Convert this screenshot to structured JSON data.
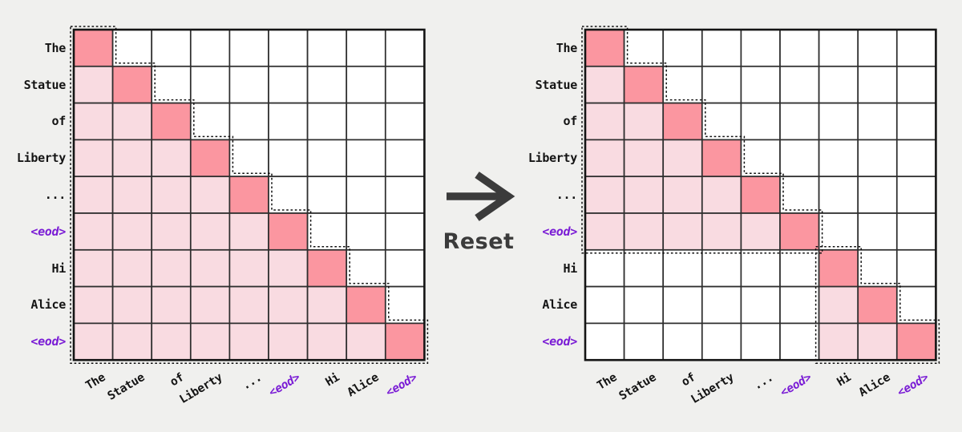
{
  "colors": {
    "background": "#f0f0ee",
    "masked": "#ffffff",
    "context": "#f9dbe1",
    "diagonal": "#fb96a0",
    "grid_line": "#2e2e2e",
    "outer_border": "#141414",
    "dotted_outline": "#101010",
    "token_label": "#141414",
    "eod_label": "#7a1cd5",
    "arrow": "#3b3b3b"
  },
  "eod_token": "<eod>",
  "transition": {
    "label": "Reset",
    "icon": "right-arrow"
  },
  "chart_data": [
    {
      "type": "heatmap",
      "name": "causal-attention-mask-before-reset",
      "row_tokens": [
        "The",
        "Statue",
        "of",
        "Liberty",
        "...",
        "<eod>",
        "Hi",
        "Alice",
        "<eod>"
      ],
      "col_tokens": [
        "The",
        "Statue",
        "of",
        "Liberty",
        "...",
        "<eod>",
        "Hi",
        "Alice",
        "<eod>"
      ],
      "value_legend": {
        "0": "masked (white)",
        "1": "attended context (light pink)",
        "2": "self / diagonal (dark pink)"
      },
      "mask": [
        [
          2,
          0,
          0,
          0,
          0,
          0,
          0,
          0,
          0
        ],
        [
          1,
          2,
          0,
          0,
          0,
          0,
          0,
          0,
          0
        ],
        [
          1,
          1,
          2,
          0,
          0,
          0,
          0,
          0,
          0
        ],
        [
          1,
          1,
          1,
          2,
          0,
          0,
          0,
          0,
          0
        ],
        [
          1,
          1,
          1,
          1,
          2,
          0,
          0,
          0,
          0
        ],
        [
          1,
          1,
          1,
          1,
          1,
          2,
          0,
          0,
          0
        ],
        [
          1,
          1,
          1,
          1,
          1,
          1,
          2,
          0,
          0
        ],
        [
          1,
          1,
          1,
          1,
          1,
          1,
          1,
          2,
          0
        ],
        [
          1,
          1,
          1,
          1,
          1,
          1,
          1,
          1,
          2
        ]
      ],
      "outline_blocks": [
        {
          "row_start": 1,
          "row_end": 9,
          "col_start": 1
        }
      ]
    },
    {
      "type": "heatmap",
      "name": "attention-mask-after-reset",
      "row_tokens": [
        "The",
        "Statue",
        "of",
        "Liberty",
        "...",
        "<eod>",
        "Hi",
        "Alice",
        "<eod>"
      ],
      "col_tokens": [
        "The",
        "Statue",
        "of",
        "Liberty",
        "...",
        "<eod>",
        "Hi",
        "Alice",
        "<eod>"
      ],
      "value_legend": {
        "0": "masked (white)",
        "1": "attended context (light pink)",
        "2": "self / diagonal (dark pink)"
      },
      "mask": [
        [
          2,
          0,
          0,
          0,
          0,
          0,
          0,
          0,
          0
        ],
        [
          1,
          2,
          0,
          0,
          0,
          0,
          0,
          0,
          0
        ],
        [
          1,
          1,
          2,
          0,
          0,
          0,
          0,
          0,
          0
        ],
        [
          1,
          1,
          1,
          2,
          0,
          0,
          0,
          0,
          0
        ],
        [
          1,
          1,
          1,
          1,
          2,
          0,
          0,
          0,
          0
        ],
        [
          1,
          1,
          1,
          1,
          1,
          2,
          0,
          0,
          0
        ],
        [
          0,
          0,
          0,
          0,
          0,
          0,
          2,
          0,
          0
        ],
        [
          0,
          0,
          0,
          0,
          0,
          0,
          1,
          2,
          0
        ],
        [
          0,
          0,
          0,
          0,
          0,
          0,
          1,
          1,
          2
        ]
      ],
      "outline_blocks": [
        {
          "row_start": 1,
          "row_end": 6,
          "col_start": 1
        },
        {
          "row_start": 7,
          "row_end": 9,
          "col_start": 7
        }
      ]
    }
  ]
}
